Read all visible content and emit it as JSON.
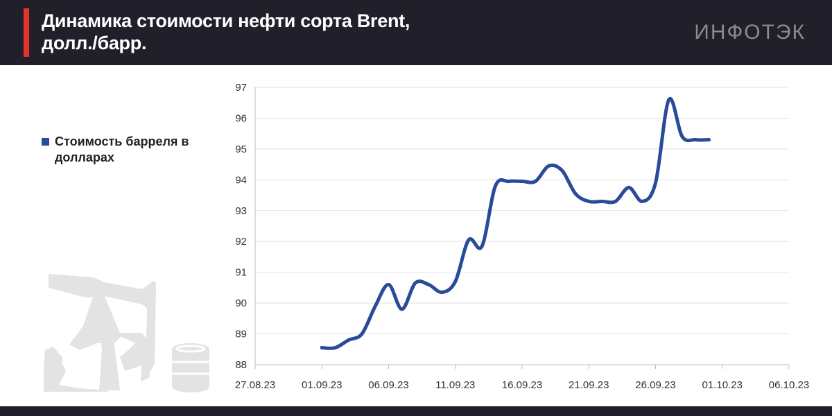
{
  "header": {
    "title_line1": "Динамика стоимости нефти сорта Brent,",
    "title_line2": "долл./барр.",
    "brand": "ИНФОТЭК",
    "accent_color": "#e6312f",
    "background_color": "#211f2a"
  },
  "legend": {
    "label": "Стоимость барреля в долларах"
  },
  "illustration": {
    "icon": "oil-pump-icon"
  },
  "chart_data": {
    "type": "line",
    "title": "Динамика стоимости нефти сорта Brent, долл./барр.",
    "xlabel": "",
    "ylabel": "",
    "ylim": [
      88,
      97
    ],
    "y_ticks": [
      88,
      89,
      90,
      91,
      92,
      93,
      94,
      95,
      96,
      97
    ],
    "x_ticks": [
      "27.08.23",
      "01.09.23",
      "06.09.23",
      "11.09.23",
      "16.09.23",
      "21.09.23",
      "26.09.23",
      "01.10.23",
      "06.10.23"
    ],
    "x_range_days": [
      0,
      40
    ],
    "grid": "horizontal",
    "series": [
      {
        "name": "Стоимость барреля в долларах",
        "color": "#2a4a9a",
        "x": [
          "01.09.23",
          "02.09.23",
          "03.09.23",
          "04.09.23",
          "05.09.23",
          "06.09.23",
          "07.09.23",
          "08.09.23",
          "09.09.23",
          "10.09.23",
          "11.09.23",
          "12.09.23",
          "13.09.23",
          "14.09.23",
          "15.09.23",
          "16.09.23",
          "17.09.23",
          "18.09.23",
          "19.09.23",
          "20.09.23",
          "21.09.23",
          "22.09.23",
          "23.09.23",
          "24.09.23",
          "25.09.23",
          "26.09.23",
          "27.09.23",
          "28.09.23",
          "29.09.23",
          "30.09.23"
        ],
        "values": [
          88.55,
          88.55,
          88.8,
          89.0,
          89.9,
          90.6,
          89.8,
          90.65,
          90.6,
          90.35,
          90.7,
          92.05,
          91.85,
          93.8,
          93.95,
          93.95,
          93.95,
          94.45,
          94.3,
          93.55,
          93.3,
          93.3,
          93.3,
          93.75,
          93.3,
          93.9,
          96.6,
          95.4,
          95.3,
          95.3
        ]
      }
    ]
  }
}
